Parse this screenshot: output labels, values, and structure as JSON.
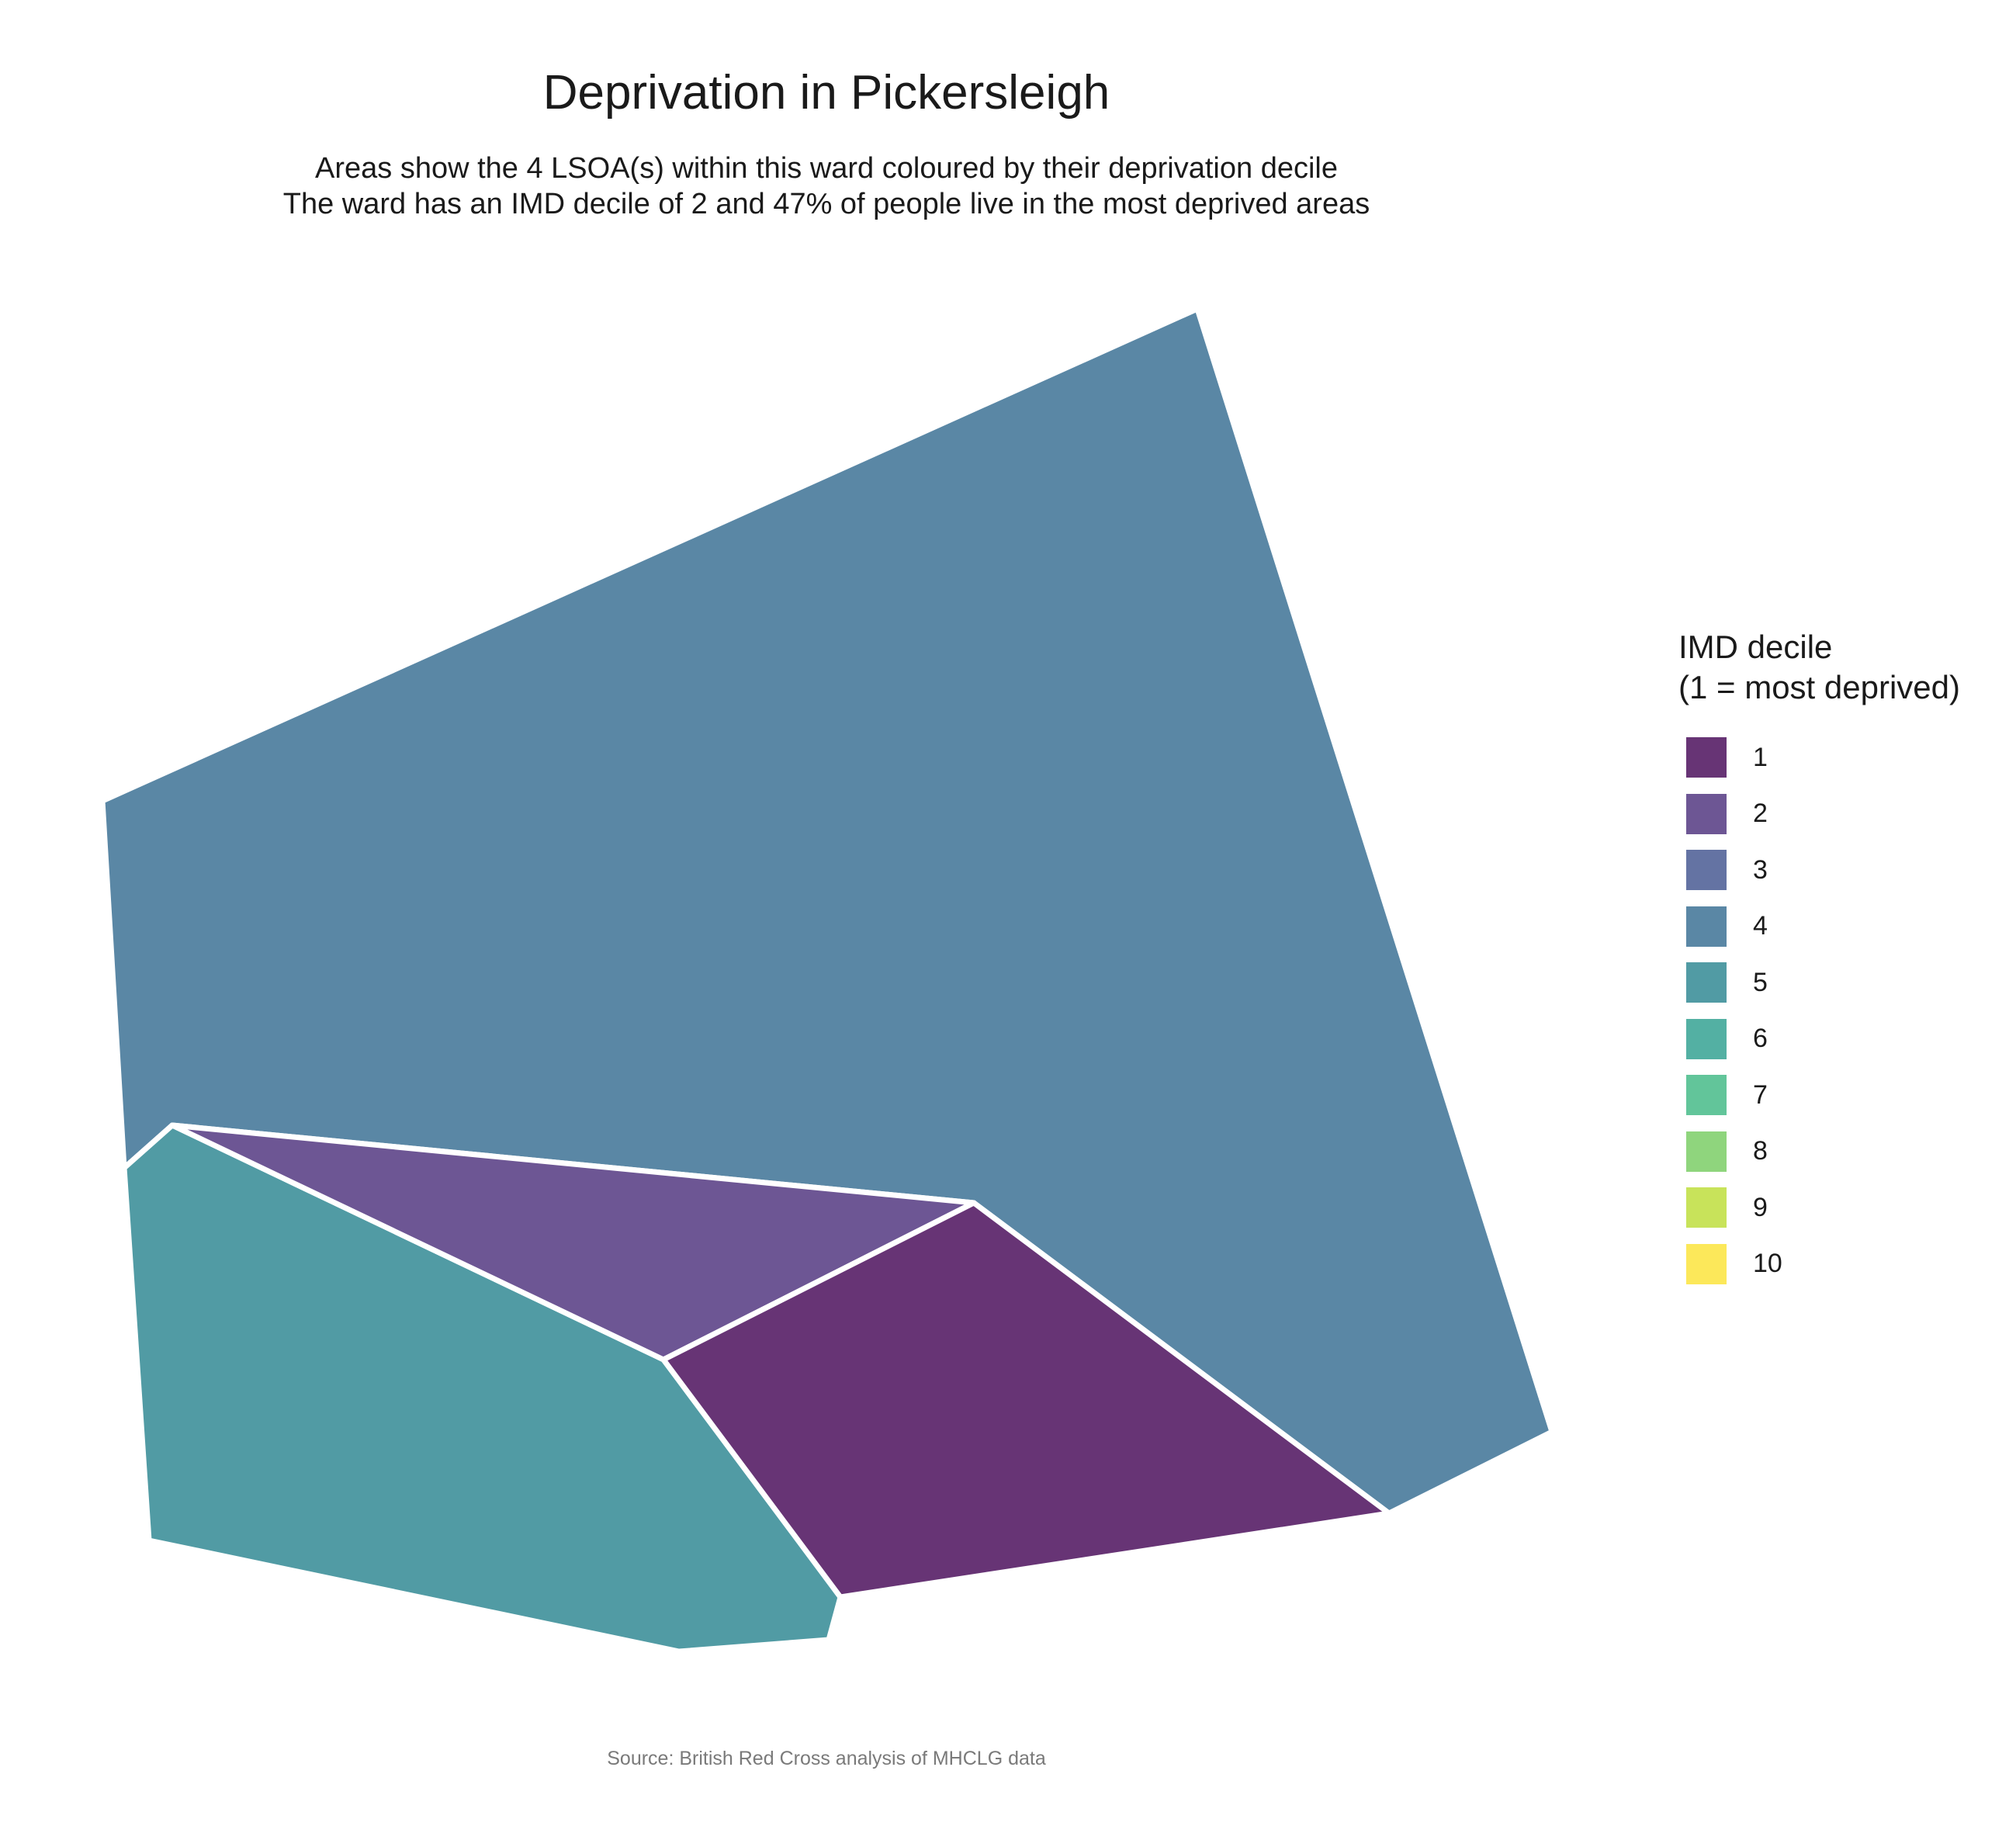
{
  "title": "Deprivation in Pickersleigh",
  "subtitle_line1": "Areas show the 4 LSOA(s) within this ward coloured by their deprivation decile",
  "subtitle_line2": "The ward has an IMD decile of 2 and 47% of people live in the most deprived areas",
  "caption": "Source: British Red Cross analysis of MHCLG data",
  "legend": {
    "title_line1": "IMD decile",
    "title_line2": "(1 = most deprived)",
    "items": [
      {
        "label": "1",
        "color": "#673475"
      },
      {
        "label": "2",
        "color": "#6D5694"
      },
      {
        "label": "3",
        "color": "#6473A3"
      },
      {
        "label": "4",
        "color": "#5A87A5"
      },
      {
        "label": "5",
        "color": "#519BA4"
      },
      {
        "label": "6",
        "color": "#53B0A3"
      },
      {
        "label": "7",
        "color": "#62C59A"
      },
      {
        "label": "8",
        "color": "#8FD57D"
      },
      {
        "label": "9",
        "color": "#C8E35A"
      },
      {
        "label": "10",
        "color": "#FCE85A"
      }
    ]
  },
  "map": {
    "areas": [
      {
        "decile": 4,
        "color": "#5A87A5"
      },
      {
        "decile": 5,
        "color": "#519BA4"
      },
      {
        "decile": 2,
        "color": "#6D5694"
      },
      {
        "decile": 1,
        "color": "#673475"
      }
    ]
  }
}
